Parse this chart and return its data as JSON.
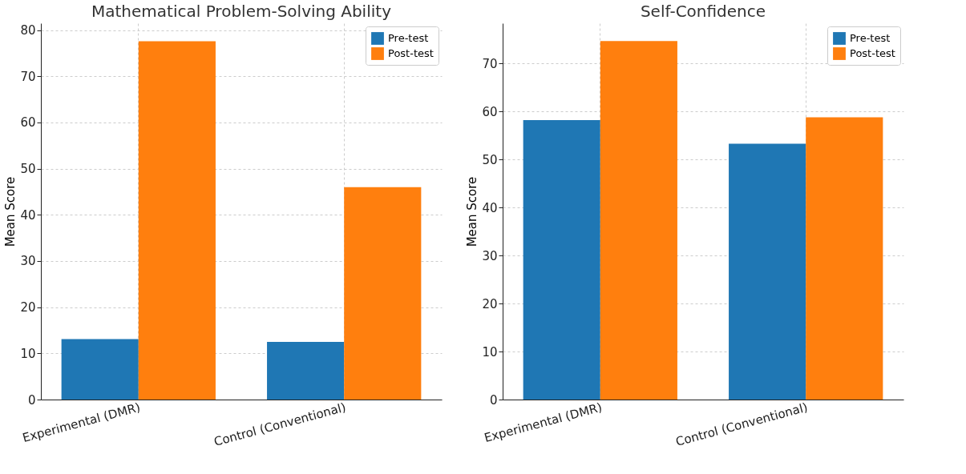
{
  "chart_data": [
    {
      "type": "bar",
      "title": "Mathematical Problem-Solving Ability",
      "ylabel": "Mean Score",
      "categories": [
        "Experimental (DMR)",
        "Control (Conventional)"
      ],
      "series": [
        {
          "name": "Pre-test",
          "color": "#1f77b4",
          "values": [
            13.1,
            12.5
          ]
        },
        {
          "name": "Post-test",
          "color": "#ff7f0e",
          "values": [
            77.6,
            46.0
          ]
        }
      ],
      "ylim": [
        0,
        81.5
      ],
      "yticks": [
        0,
        10,
        20,
        30,
        40,
        50,
        60,
        70,
        80
      ],
      "grid": true,
      "legend": "top right"
    },
    {
      "type": "bar",
      "title": "Self-Confidence",
      "ylabel": "Mean Score",
      "categories": [
        "Experimental (DMR)",
        "Control (Conventional)"
      ],
      "series": [
        {
          "name": "Pre-test",
          "color": "#1f77b4",
          "values": [
            58.2,
            53.3
          ]
        },
        {
          "name": "Post-test",
          "color": "#ff7f0e",
          "values": [
            74.7,
            58.8
          ]
        }
      ],
      "ylim": [
        0,
        78.4
      ],
      "yticks": [
        0,
        10,
        20,
        30,
        40,
        50,
        60,
        70
      ],
      "grid": true,
      "legend": "top right"
    }
  ]
}
